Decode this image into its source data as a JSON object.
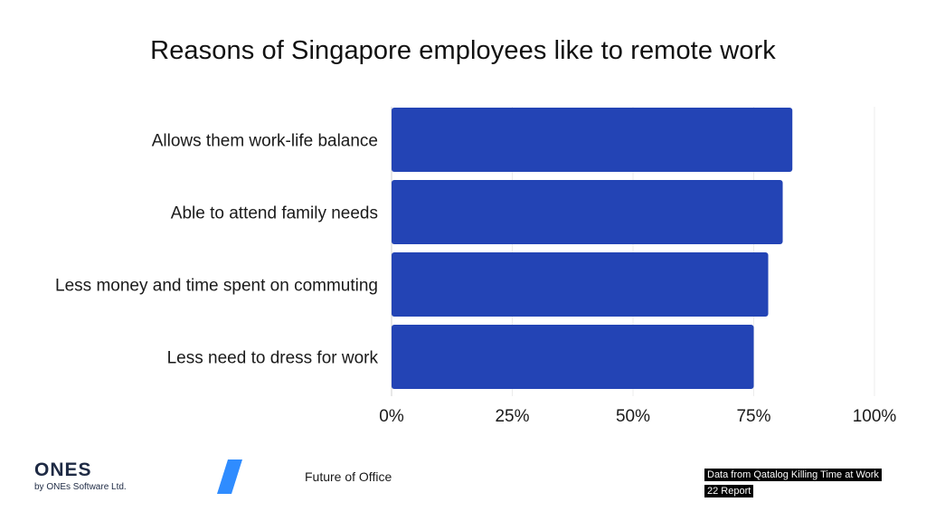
{
  "chart_data": {
    "type": "bar",
    "orientation": "horizontal",
    "title": "Reasons of Singapore employees like to remote work",
    "categories": [
      "Allows them work-life balance",
      "Able to attend family needs",
      "Less money and time spent on commuting",
      "Less need to dress for work"
    ],
    "values": [
      83,
      81,
      78,
      75
    ],
    "value_unit": "%",
    "xlim": [
      0,
      100
    ],
    "x_ticks": [
      "0%",
      "25%",
      "50%",
      "75%",
      "100%"
    ],
    "x_tick_values": [
      0,
      25,
      50,
      75,
      100
    ],
    "grid": true,
    "bar_color": "#2344b5"
  },
  "footer": {
    "logo_text": "ONES",
    "logo_subtext": "by ONEs Software Ltd.",
    "center_text": "Future of Office",
    "source_note": "Data from Qatalog Killing Time at Work 22 Report",
    "slash_color": "#2f8cff"
  }
}
